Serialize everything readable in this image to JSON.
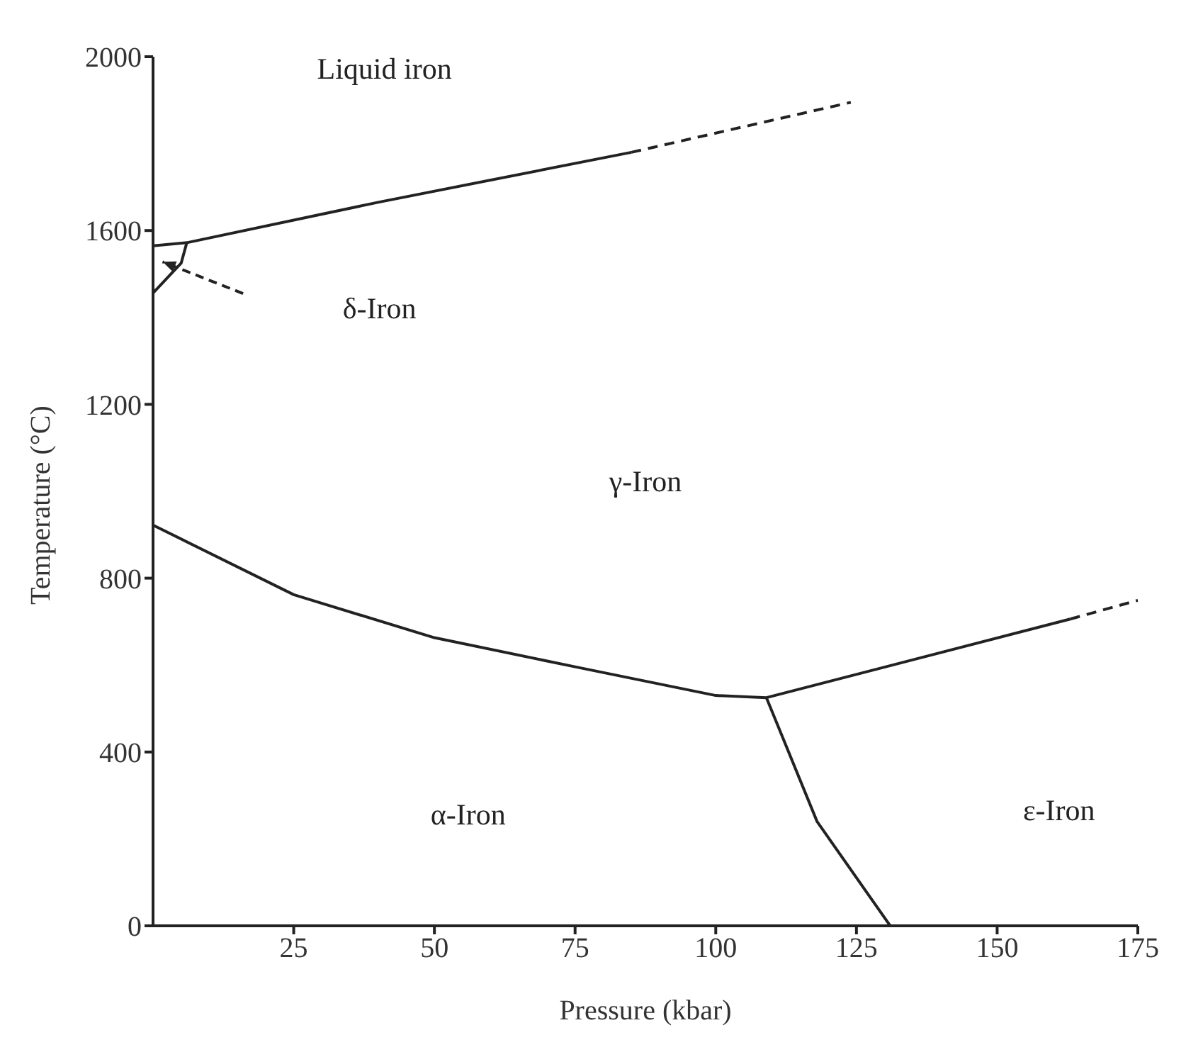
{
  "chart_data": {
    "type": "line",
    "xlabel": "Pressure (kbar)",
    "ylabel": "Temperature (°C)",
    "xlim": [
      0,
      175
    ],
    "xticks": [
      25,
      50,
      75,
      100,
      125,
      150,
      175
    ],
    "ylim": [
      0,
      2000
    ],
    "yticks": [
      0,
      400,
      800,
      1200,
      1600,
      2000
    ],
    "grid": false,
    "marker": "none",
    "series": [
      {
        "color": "#222222",
        "line_style": "solid",
        "x": [
          0,
          6,
          40,
          85
        ],
        "values": [
          1565,
          1572,
          1665,
          1780
        ]
      },
      {
        "color": "#222222",
        "line_style": "dashed",
        "x": [
          85,
          124
        ],
        "values": [
          1780,
          1895
        ]
      },
      {
        "color": "#222222",
        "line_style": "solid",
        "x": [
          0,
          5,
          6
        ],
        "values": [
          1456,
          1525,
          1572
        ]
      },
      {
        "color": "#222222",
        "line_style": "solid",
        "x": [
          0,
          25,
          50,
          75,
          100,
          109,
          163
        ],
        "values": [
          922,
          762,
          663,
          596,
          530,
          525,
          706
        ]
      },
      {
        "color": "#222222",
        "line_style": "dashed",
        "x": [
          163,
          175
        ],
        "values": [
          706,
          749
        ]
      },
      {
        "color": "#222222",
        "line_style": "solid",
        "x": [
          109,
          118,
          131
        ],
        "values": [
          525,
          240,
          0
        ]
      }
    ],
    "annotations": [
      "Liquid iron",
      "δ-Iron",
      "γ-Iron",
      "α-Iron",
      "ε-Iron"
    ]
  }
}
